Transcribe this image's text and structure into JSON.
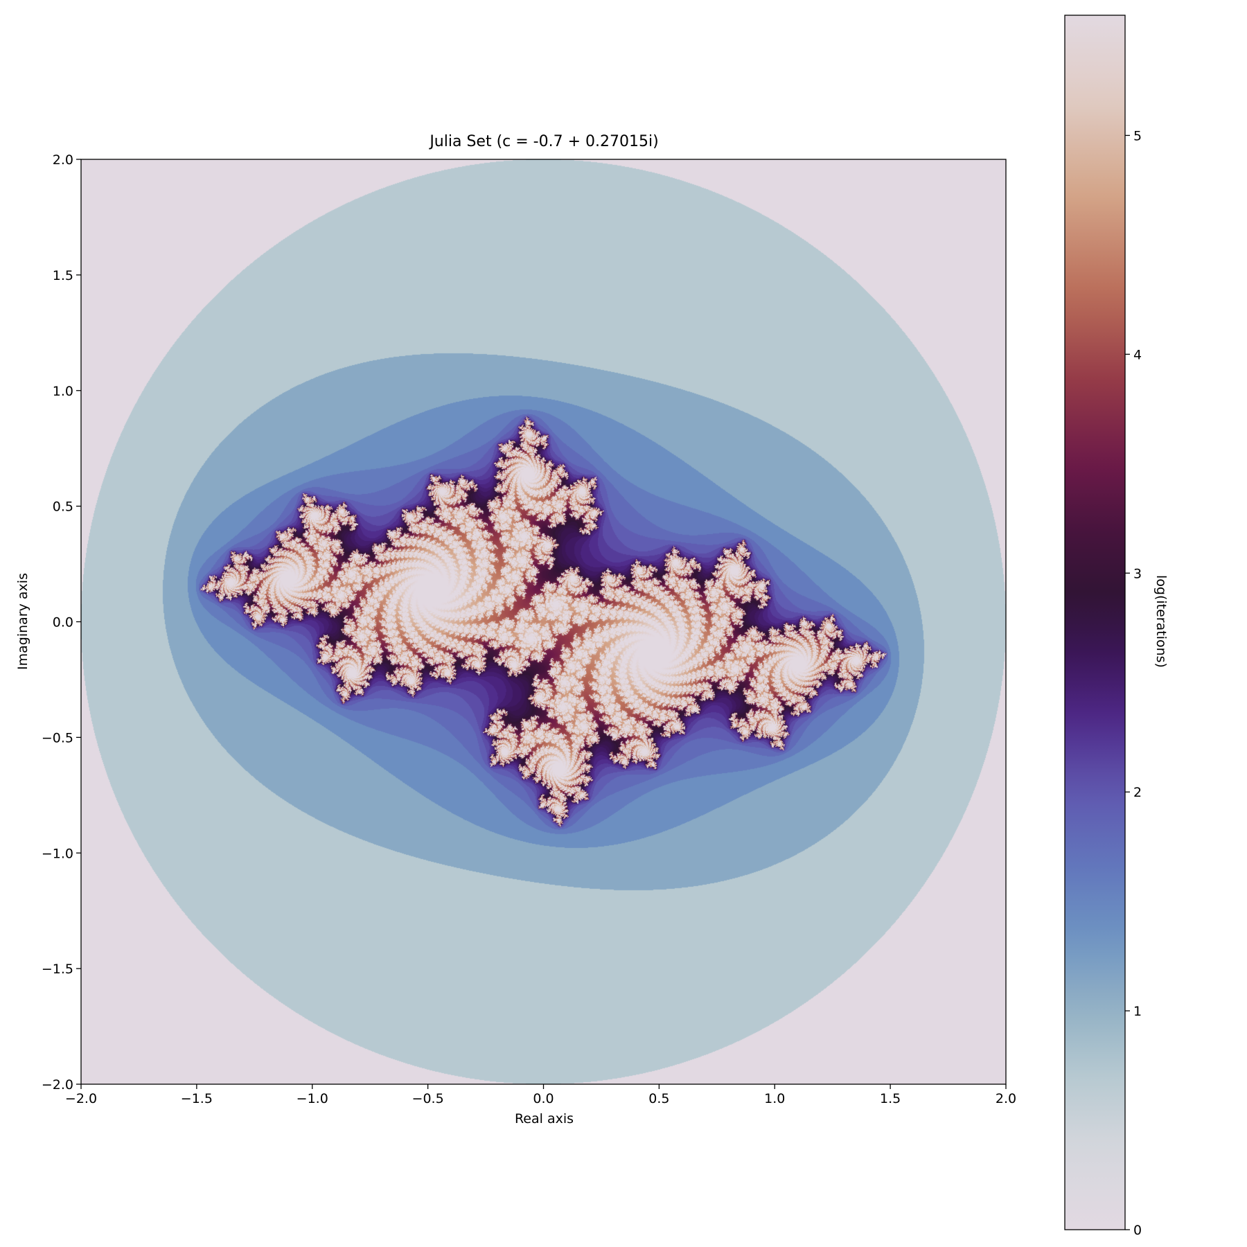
{
  "chart_data": {
    "type": "heatmap",
    "title": "Julia Set (c = -0.7 + 0.27015i)",
    "xlabel": "Real axis",
    "ylabel": "Imaginary axis",
    "colorbar_label": "log(iterations)",
    "colormap": "twilight",
    "c": {
      "re": -0.7,
      "im": 0.27015
    },
    "xlim": [
      -2.0,
      2.0
    ],
    "ylim": [
      -2.0,
      2.0
    ],
    "clim": [
      0,
      5.56
    ],
    "x_ticks": [
      -2.0,
      -1.5,
      -1.0,
      -0.5,
      0.0,
      0.5,
      1.0,
      1.5,
      2.0
    ],
    "x_tick_labels": [
      "−2.0",
      "−1.5",
      "−1.0",
      "−0.5",
      "0.0",
      "0.5",
      "1.0",
      "1.5",
      "2.0"
    ],
    "y_ticks": [
      -2.0,
      -1.5,
      -1.0,
      -0.5,
      0.0,
      0.5,
      1.0,
      1.5,
      2.0
    ],
    "y_tick_labels": [
      "−2.0",
      "−1.5",
      "−1.0",
      "−0.5",
      "0.0",
      "0.5",
      "1.0",
      "1.5",
      "2.0"
    ],
    "colorbar_ticks": [
      0,
      1,
      2,
      3,
      4,
      5
    ],
    "colorbar_tick_labels": [
      "0",
      "1",
      "2",
      "3",
      "4",
      "5"
    ],
    "max_iterations": 256,
    "escape_radius": 2.0,
    "grid": false
  }
}
